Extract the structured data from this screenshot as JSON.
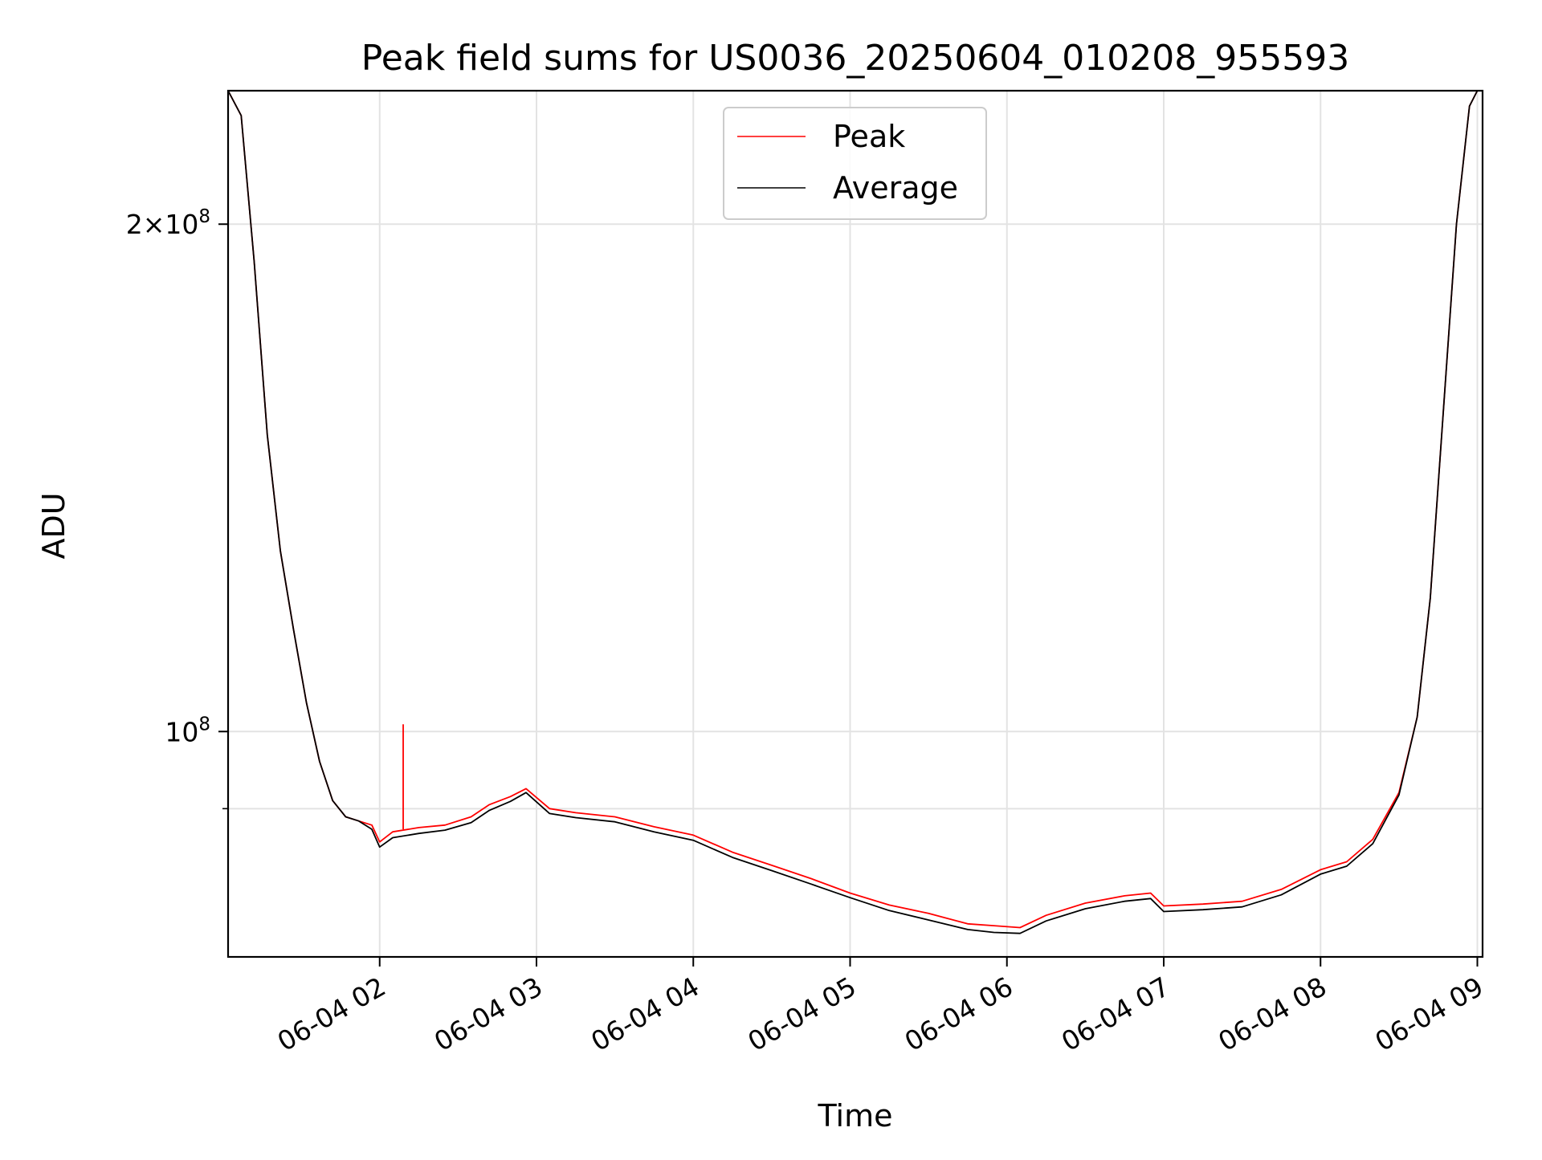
{
  "chart_data": {
    "type": "line",
    "title": "Peak field sums for US0036_20250604_010208_955593",
    "xlabel": "Time",
    "ylabel": "ADU",
    "yscale": "log",
    "ylim": [
      73500000,
      240000000
    ],
    "xlim": [
      "06-04 01:02",
      "06-04 09:02"
    ],
    "grid": true,
    "legend_position": "top-center",
    "x_tick_labels": [
      "06-04 02",
      "06-04 03",
      "06-04 04",
      "06-04 05",
      "06-04 06",
      "06-04 07",
      "06-04 08",
      "06-04 09"
    ],
    "y_ticks": [
      {
        "value": 100000000,
        "base": "10",
        "exp": "8",
        "mult": ""
      },
      {
        "value": 200000000,
        "base": "10",
        "exp": "8",
        "mult": "2×"
      }
    ],
    "x": [
      "06-04 01:02",
      "06-04 01:07",
      "06-04 01:12",
      "06-04 01:17",
      "06-04 01:22",
      "06-04 01:27",
      "06-04 01:32",
      "06-04 01:37",
      "06-04 01:42",
      "06-04 01:47",
      "06-04 01:52",
      "06-04 01:57",
      "06-04 02:00",
      "06-04 02:05",
      "06-04 02:15",
      "06-04 02:25",
      "06-04 02:35",
      "06-04 02:42",
      "06-04 02:50",
      "06-04 02:56",
      "06-04 03:05",
      "06-04 03:15",
      "06-04 03:30",
      "06-04 03:45",
      "06-04 04:00",
      "06-04 04:15",
      "06-04 04:30",
      "06-04 04:45",
      "06-04 05:00",
      "06-04 05:15",
      "06-04 05:30",
      "06-04 05:45",
      "06-04 05:55",
      "06-04 06:05",
      "06-04 06:15",
      "06-04 06:30",
      "06-04 06:45",
      "06-04 06:55",
      "06-04 07:00",
      "06-04 07:15",
      "06-04 07:30",
      "06-04 07:45",
      "06-04 08:00",
      "06-04 08:10",
      "06-04 08:20",
      "06-04 08:30",
      "06-04 08:37",
      "06-04 08:42",
      "06-04 08:47",
      "06-04 08:52",
      "06-04 08:57",
      "06-04 09:00",
      "06-04 09:02"
    ],
    "series": [
      {
        "name": "Peak",
        "color": "#ff0000",
        "values": [
          240000000,
          232000000,
          190000000,
          150000000,
          128000000,
          115000000,
          104000000,
          96000000,
          91000000,
          89000000,
          88500000,
          88000000,
          86000000,
          87200000,
          87700000,
          88000000,
          89000000,
          90500000,
          91500000,
          92500000,
          90000000,
          89500000,
          89000000,
          87800000,
          86800000,
          84800000,
          83300000,
          81800000,
          80200000,
          78900000,
          78000000,
          76900000,
          76700000,
          76500000,
          77800000,
          79100000,
          79900000,
          80200000,
          78800000,
          79000000,
          79300000,
          80600000,
          82800000,
          83700000,
          86300000,
          92000000,
          102000000,
          120000000,
          155000000,
          200000000,
          235000000,
          240000000,
          240000000
        ]
      },
      {
        "name": "Average",
        "color": "#000000",
        "values": [
          240000000,
          232000000,
          190000000,
          150000000,
          128000000,
          115000000,
          104000000,
          96000000,
          91000000,
          89000000,
          88500000,
          87500000,
          85400000,
          86500000,
          87000000,
          87400000,
          88300000,
          89800000,
          90900000,
          92000000,
          89400000,
          88900000,
          88400000,
          87200000,
          86200000,
          84200000,
          82700000,
          81200000,
          79700000,
          78300000,
          77300000,
          76300000,
          76000000,
          75900000,
          77200000,
          78500000,
          79300000,
          79600000,
          78200000,
          78400000,
          78700000,
          80000000,
          82300000,
          83200000,
          85800000,
          91700000,
          102000000,
          120000000,
          155000000,
          200000000,
          235000000,
          240000000,
          240000000
        ]
      }
    ],
    "spikes": [
      {
        "series": "Peak",
        "x": "06-04 02:09",
        "value": 101000000
      }
    ]
  }
}
